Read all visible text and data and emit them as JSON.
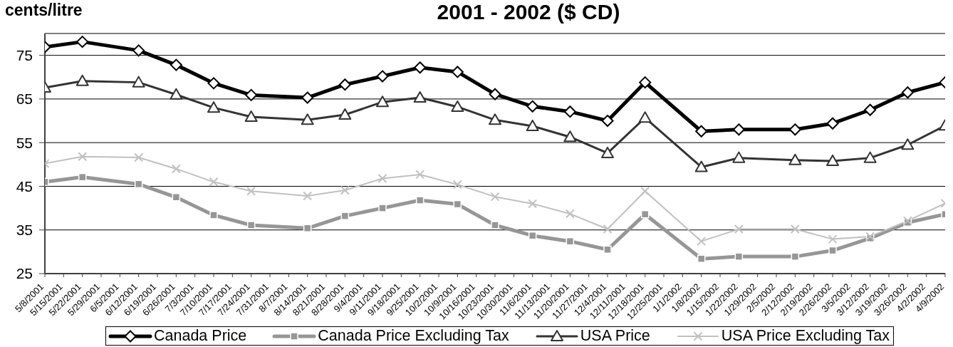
{
  "chart_data": {
    "type": "line",
    "title": "2001 - 2002 ($ CD)",
    "ylabel": "cents/litre",
    "x": [
      "2001-05-08",
      "2001-05-22",
      "2001-06-12",
      "2001-06-26",
      "2001-07-10",
      "2001-07-24",
      "2001-08-14",
      "2001-08-28",
      "2001-09-11",
      "2001-09-25",
      "2001-10-09",
      "2001-10-23",
      "2001-11-06",
      "2001-11-20",
      "2001-12-04",
      "2001-12-18",
      "2002-01-08",
      "2002-01-22",
      "2002-02-12",
      "2002-02-26",
      "2002-03-12",
      "2002-03-26",
      "2002-04-09"
    ],
    "xlim": [
      "2001-05-08",
      "2002-04-09"
    ],
    "xticks": [
      {
        "value": "2001-05-08",
        "label": "5/8/2001"
      },
      {
        "value": "2001-05-15",
        "label": "5/15/2001"
      },
      {
        "value": "2001-05-22",
        "label": "5/22/2001"
      },
      {
        "value": "2001-05-29",
        "label": "5/29/2001"
      },
      {
        "value": "2001-06-05",
        "label": "6/5/2001"
      },
      {
        "value": "2001-06-12",
        "label": "6/12/2001"
      },
      {
        "value": "2001-06-19",
        "label": "6/19/2001"
      },
      {
        "value": "2001-06-26",
        "label": "6/26/2001"
      },
      {
        "value": "2001-07-03",
        "label": "7/3/2001"
      },
      {
        "value": "2001-07-10",
        "label": "7/10/2001"
      },
      {
        "value": "2001-07-17",
        "label": "7/17/2001"
      },
      {
        "value": "2001-07-24",
        "label": "7/24/2001"
      },
      {
        "value": "2001-07-31",
        "label": "7/31/2001"
      },
      {
        "value": "2001-08-07",
        "label": "8/7/2001"
      },
      {
        "value": "2001-08-14",
        "label": "8/14/2001"
      },
      {
        "value": "2001-08-21",
        "label": "8/21/2001"
      },
      {
        "value": "2001-08-28",
        "label": "8/28/2001"
      },
      {
        "value": "2001-09-04",
        "label": "9/4/2001"
      },
      {
        "value": "2001-09-11",
        "label": "9/11/2001"
      },
      {
        "value": "2001-09-18",
        "label": "9/18/2001"
      },
      {
        "value": "2001-09-25",
        "label": "9/25/2001"
      },
      {
        "value": "2001-10-02",
        "label": "10/2/2001"
      },
      {
        "value": "2001-10-09",
        "label": "10/9/2001"
      },
      {
        "value": "2001-10-16",
        "label": "10/16/2001"
      },
      {
        "value": "2001-10-23",
        "label": "10/23/2001"
      },
      {
        "value": "2001-10-30",
        "label": "10/30/2001"
      },
      {
        "value": "2001-11-06",
        "label": "11/6/2001"
      },
      {
        "value": "2001-11-13",
        "label": "11/13/2001"
      },
      {
        "value": "2001-11-20",
        "label": "11/20/2001"
      },
      {
        "value": "2001-11-27",
        "label": "11/27/2001"
      },
      {
        "value": "2001-12-04",
        "label": "12/4/2001"
      },
      {
        "value": "2001-12-11",
        "label": "12/11/2001"
      },
      {
        "value": "2001-12-18",
        "label": "12/18/2001"
      },
      {
        "value": "2001-12-25",
        "label": "12/25/2001"
      },
      {
        "value": "2002-01-01",
        "label": "1/1/2002"
      },
      {
        "value": "2002-01-08",
        "label": "1/8/2002"
      },
      {
        "value": "2002-01-15",
        "label": "1/15/2002"
      },
      {
        "value": "2002-01-22",
        "label": "1/22/2002"
      },
      {
        "value": "2002-01-29",
        "label": "1/29/2002"
      },
      {
        "value": "2002-02-05",
        "label": "2/5/2002"
      },
      {
        "value": "2002-02-12",
        "label": "2/12/2002"
      },
      {
        "value": "2002-02-19",
        "label": "2/19/2002"
      },
      {
        "value": "2002-02-26",
        "label": "2/26/2002"
      },
      {
        "value": "2002-03-05",
        "label": "3/5/2002"
      },
      {
        "value": "2002-03-12",
        "label": "3/12/2002"
      },
      {
        "value": "2002-03-19",
        "label": "3/19/2002"
      },
      {
        "value": "2002-03-26",
        "label": "3/26/2002"
      },
      {
        "value": "2002-04-02",
        "label": "4/2/2002"
      },
      {
        "value": "2002-04-09",
        "label": "4/9/2002"
      }
    ],
    "ylim": [
      25,
      80
    ],
    "yticks": [
      25,
      35,
      45,
      55,
      65,
      75
    ],
    "grid": "y",
    "legend": "bottom",
    "line_style": "solid",
    "series": [
      {
        "name": "Canada Price",
        "color": "#000000",
        "marker": "diamond",
        "values": [
          76.9,
          78.1,
          76.1,
          72.8,
          68.6,
          65.9,
          65.3,
          68.3,
          70.2,
          72.2,
          71.2,
          66.1,
          63.3,
          62.1,
          60.0,
          68.8,
          57.6,
          58.0,
          58.0,
          59.4,
          62.5,
          66.5,
          68.8
        ]
      },
      {
        "name": "Canada Price Excluding Tax",
        "color": "#969696",
        "marker": "square",
        "values": [
          46.0,
          47.1,
          45.5,
          42.5,
          38.4,
          36.1,
          35.4,
          38.2,
          40.0,
          41.8,
          40.9,
          36.1,
          33.7,
          32.4,
          30.5,
          38.6,
          28.4,
          28.9,
          28.9,
          30.3,
          33.1,
          36.7,
          38.6
        ]
      },
      {
        "name": "USA Price",
        "color": "#333333",
        "marker": "triangle",
        "values": [
          67.6,
          69.1,
          68.8,
          66.0,
          63.0,
          60.9,
          60.2,
          61.4,
          64.3,
          65.3,
          63.2,
          60.2,
          58.8,
          56.3,
          52.6,
          60.7,
          49.4,
          51.5,
          51.0,
          50.8,
          51.5,
          54.5,
          58.9
        ]
      },
      {
        "name": "USA Price Excluding Tax",
        "color": "#c0c0c0",
        "marker": "cross",
        "values": [
          50.2,
          51.8,
          51.6,
          49.0,
          46.0,
          43.9,
          42.8,
          44.1,
          46.8,
          47.7,
          45.4,
          42.6,
          41.0,
          38.7,
          35.2,
          43.9,
          32.4,
          35.2,
          35.2,
          32.9,
          33.5,
          37.1,
          41.1
        ]
      }
    ]
  }
}
